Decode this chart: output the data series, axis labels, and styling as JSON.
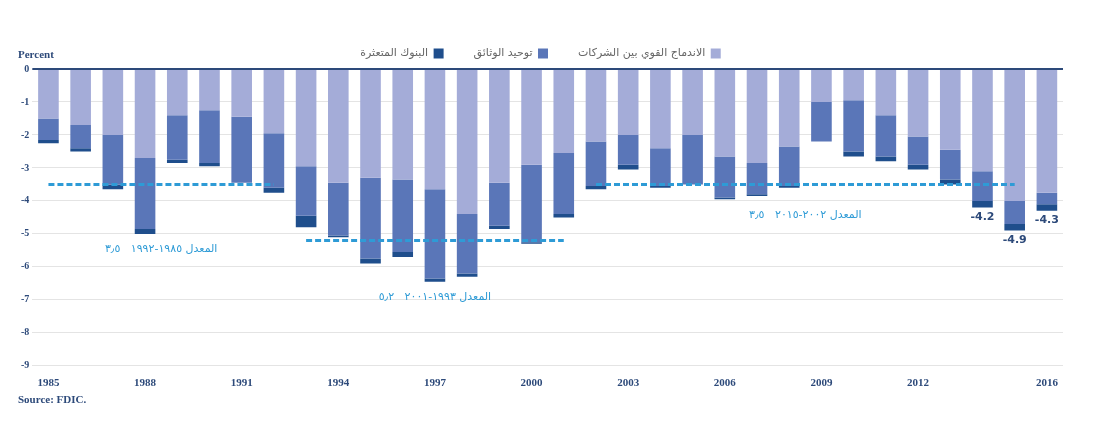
{
  "chart_data": {
    "type": "bar",
    "stacked": true,
    "ylabel": "Percent",
    "categories": [
      "1985",
      null,
      null,
      "1988",
      null,
      null,
      "1991",
      null,
      null,
      "1994",
      null,
      null,
      "1997",
      null,
      null,
      "2000",
      null,
      null,
      "2003",
      null,
      null,
      "2006",
      null,
      null,
      "2009",
      null,
      null,
      "2012",
      null,
      null,
      null,
      "2016"
    ],
    "series": [
      {
        "name": "الاندماج القوي بين الشركات",
        "color": "#a4acd8",
        "values": [
          -1.5,
          -1.7,
          -2.0,
          -2.7,
          -1.4,
          -1.25,
          -1.45,
          -1.95,
          -2.95,
          -3.45,
          -3.3,
          -3.35,
          -3.65,
          -4.4,
          -3.45,
          -2.9,
          -2.55,
          -2.2,
          -2.0,
          -2.4,
          -2.0,
          -2.65,
          -2.85,
          -2.35,
          -1.0,
          -0.95,
          -1.4,
          -2.05,
          -2.45,
          -3.1,
          -4.0,
          -3.75
        ]
      },
      {
        "name": "توحيد الوثائق",
        "color": "#5a76b8",
        "values": [
          -0.65,
          -0.7,
          -1.5,
          -2.15,
          -1.35,
          -1.6,
          -2.0,
          -1.65,
          -1.5,
          -1.6,
          -2.45,
          -2.2,
          -2.7,
          -1.8,
          -1.3,
          -2.35,
          -1.85,
          -1.35,
          -0.9,
          -1.15,
          -1.5,
          -1.25,
          -0.95,
          -1.2,
          -1.2,
          -1.55,
          -1.25,
          -0.85,
          -0.9,
          -0.9,
          -0.7,
          -0.35
        ]
      },
      {
        "name": "البنوك المتعثرة",
        "color": "#1f4e8c",
        "values": [
          -0.1,
          -0.1,
          -0.15,
          -0.15,
          -0.1,
          -0.1,
          null,
          -0.15,
          -0.35,
          -0.05,
          -0.15,
          -0.15,
          -0.1,
          -0.1,
          -0.1,
          -0.05,
          -0.1,
          -0.1,
          -0.15,
          -0.05,
          null,
          -0.05,
          -0.05,
          -0.05,
          0,
          -0.15,
          -0.15,
          -0.15,
          -0.15,
          -0.2,
          -0.2,
          -0.2
        ]
      },
      {
        "type": "line",
        "name": "المعدل ١٩٨٥-١٩٩٢   ٣٫٥",
        "color": "#2e9bd6",
        "line_style": "dashed",
        "values": [
          -3.5,
          -3.5,
          -3.5,
          -3.5,
          -3.5,
          -3.5,
          -3.5,
          -3.5,
          null,
          null,
          null,
          null,
          null,
          null,
          null,
          null,
          null,
          null,
          null,
          null,
          null,
          null,
          null,
          null,
          null,
          null,
          null,
          null,
          null,
          null,
          null,
          null
        ]
      },
      {
        "type": "line",
        "name": "المعدل ١٩٩٣-٢٠٠١   ٥٫٢",
        "color": "#2e9bd6",
        "line_style": "dashed",
        "values": [
          null,
          null,
          null,
          null,
          null,
          null,
          null,
          null,
          -5.2,
          -5.2,
          -5.2,
          -5.2,
          -5.2,
          -5.2,
          -5.2,
          -5.2,
          -5.2,
          null,
          null,
          null,
          null,
          null,
          null,
          null,
          null,
          null,
          null,
          null,
          null,
          null,
          null,
          null
        ]
      },
      {
        "type": "line",
        "name": "المعدل ٢٠٠٢-٢٠١٥   ٣٫٥",
        "color": "#2e9bd6",
        "line_style": "dashed",
        "values": [
          null,
          null,
          null,
          null,
          null,
          null,
          null,
          null,
          null,
          null,
          null,
          null,
          null,
          null,
          null,
          null,
          null,
          -3.5,
          -3.5,
          -3.5,
          -3.5,
          -3.5,
          -3.5,
          -3.5,
          -3.5,
          -3.5,
          -3.5,
          -3.5,
          -3.5,
          -3.5,
          -3.5,
          null
        ]
      }
    ],
    "totals": [
      null,
      null,
      null,
      null,
      null,
      null,
      null,
      null,
      null,
      null,
      null,
      null,
      null,
      null,
      null,
      null,
      null,
      null,
      null,
      null,
      null,
      null,
      null,
      null,
      null,
      null,
      null,
      null,
      null,
      "-4.2",
      "-4.9",
      "-4.3"
    ],
    "ylim": [
      -9,
      0
    ],
    "yticks": [
      0,
      -1,
      -2,
      -3,
      -4,
      -5,
      -6,
      -7,
      -8,
      -9
    ],
    "ref_lines": [
      {
        "axis": "y",
        "value": 0,
        "color": "#2d4a7a"
      }
    ],
    "grid": "y",
    "legend": "top",
    "annotations": [
      "Source: FDIC."
    ]
  }
}
